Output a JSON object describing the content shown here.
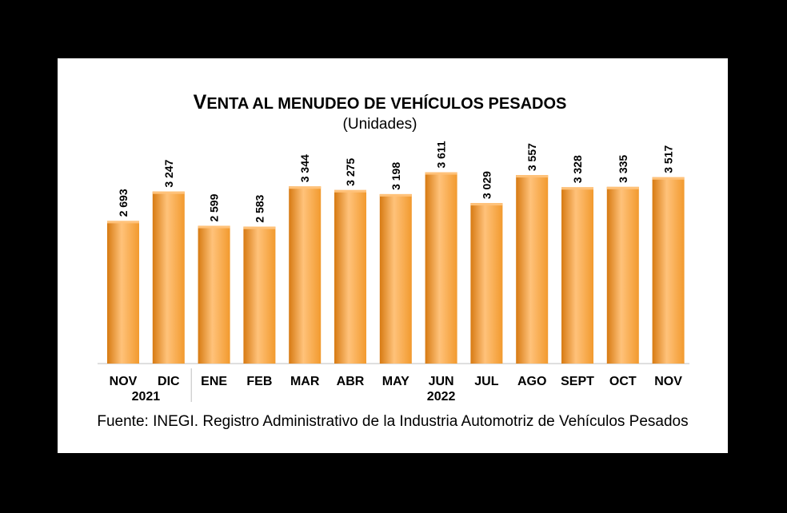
{
  "chart_data": {
    "type": "bar",
    "title_first": "V",
    "title_rest": "ENTA AL MENUDEO DE VEHÍCULOS PESADOS",
    "subtitle": "(Unidades)",
    "categories": [
      "NOV",
      "DIC",
      "ENE",
      "FEB",
      "MAR",
      "ABR",
      "MAY",
      "JUN",
      "JUL",
      "AGO",
      "SEPT",
      "OCT",
      "NOV"
    ],
    "values": [
      2693,
      3247,
      2599,
      2583,
      3344,
      3275,
      3198,
      3611,
      3029,
      3557,
      3328,
      3335,
      3517
    ],
    "value_labels": [
      "2 693",
      "3 247",
      "2 599",
      "2 583",
      "3 344",
      "3 275",
      "3 198",
      "3 611",
      "3 029",
      "3 557",
      "3 328",
      "3 335",
      "3 517"
    ],
    "year_groups": [
      {
        "label": "2021",
        "start": 0,
        "end": 1
      },
      {
        "label": "2022",
        "start": 2,
        "end": 12
      }
    ],
    "ylim": [
      0,
      3800
    ],
    "bar_color": "#F29A2E",
    "bar_color_light": "#FFC27A",
    "bar_color_dark": "#D77A12",
    "grid": false,
    "source": "Fuente: INEGI. Registro Administrativo de la Industria Automotriz de Vehículos Pesados"
  }
}
